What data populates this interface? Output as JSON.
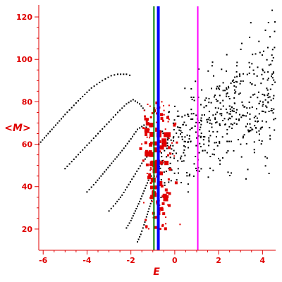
{
  "chart_data": {
    "type": "scatter",
    "title": "",
    "xlabel": "E",
    "ylabel": "<M>",
    "xlim": [
      -6.2,
      4.6
    ],
    "ylim": [
      10,
      125
    ],
    "x_ticks": [
      -6,
      -4,
      -2,
      0,
      2,
      4
    ],
    "y_ticks": [
      20,
      40,
      60,
      80,
      100,
      120
    ],
    "grid": false,
    "legend": "none",
    "colors": {
      "axes": "#e00000",
      "tick_labels": "#e00000",
      "black_points": "#000000",
      "red_points": "#e00000",
      "line_green": "#008000",
      "line_blue": "#0000ff",
      "line_magenta": "#ff00ff"
    },
    "vertical_lines": [
      {
        "x": -0.95,
        "color": "#008000",
        "width": 2
      },
      {
        "x": -0.75,
        "color": "#0000ff",
        "width": 4
      },
      {
        "x": 1.05,
        "color": "#ff00ff",
        "width": 2
      }
    ],
    "series": [
      {
        "color": "#000000",
        "marker": "dot",
        "kind": "curves",
        "curves": [
          [
            [
              -6.2,
              60
            ],
            [
              -5.6,
              67
            ],
            [
              -5.0,
              74
            ],
            [
              -4.4,
              80.5
            ],
            [
              -3.8,
              86.5
            ],
            [
              -3.3,
              90
            ],
            [
              -2.9,
              92.3
            ],
            [
              -2.6,
              93
            ],
            [
              -2.2,
              93
            ],
            [
              -1.9,
              92
            ]
          ],
          [
            [
              -5.0,
              48.5
            ],
            [
              -4.5,
              54
            ],
            [
              -4.0,
              59.5
            ],
            [
              -3.5,
              65
            ],
            [
              -3.0,
              70.5
            ],
            [
              -2.6,
              75
            ],
            [
              -2.2,
              79
            ],
            [
              -1.9,
              81
            ],
            [
              -1.6,
              79
            ],
            [
              -1.3,
              75
            ]
          ],
          [
            [
              -4.0,
              37.5
            ],
            [
              -3.6,
              42
            ],
            [
              -3.2,
              47
            ],
            [
              -2.8,
              52
            ],
            [
              -2.4,
              57
            ],
            [
              -2.0,
              62.5
            ],
            [
              -1.7,
              67
            ],
            [
              -1.4,
              69
            ],
            [
              -1.1,
              66
            ]
          ],
          [
            [
              -3.0,
              28.5
            ],
            [
              -2.7,
              32
            ],
            [
              -2.4,
              36
            ],
            [
              -2.1,
              41
            ],
            [
              -1.8,
              46
            ],
            [
              -1.5,
              51
            ],
            [
              -1.2,
              55
            ],
            [
              -1.0,
              57
            ]
          ],
          [
            [
              -2.2,
              20.5
            ],
            [
              -2.0,
              24
            ],
            [
              -1.8,
              28.5
            ],
            [
              -1.6,
              33
            ],
            [
              -1.4,
              38
            ],
            [
              -1.2,
              43
            ],
            [
              -1.0,
              46
            ]
          ],
          [
            [
              -1.7,
              14
            ],
            [
              -1.55,
              17.5
            ],
            [
              -1.4,
              22
            ],
            [
              -1.25,
              27
            ],
            [
              -1.1,
              32
            ],
            [
              -0.95,
              36
            ]
          ]
        ],
        "cloud": {
          "x_range": [
            -0.8,
            4.6
          ],
          "y_center_start": 52,
          "y_center_end": 90,
          "spread": 14,
          "count": 520
        }
      },
      {
        "color": "#e00000",
        "marker": "square",
        "kind": "cluster",
        "cluster": {
          "x_center": -0.8,
          "x_spread": 0.55,
          "y_range": [
            20,
            80
          ],
          "count": 170
        }
      }
    ]
  }
}
